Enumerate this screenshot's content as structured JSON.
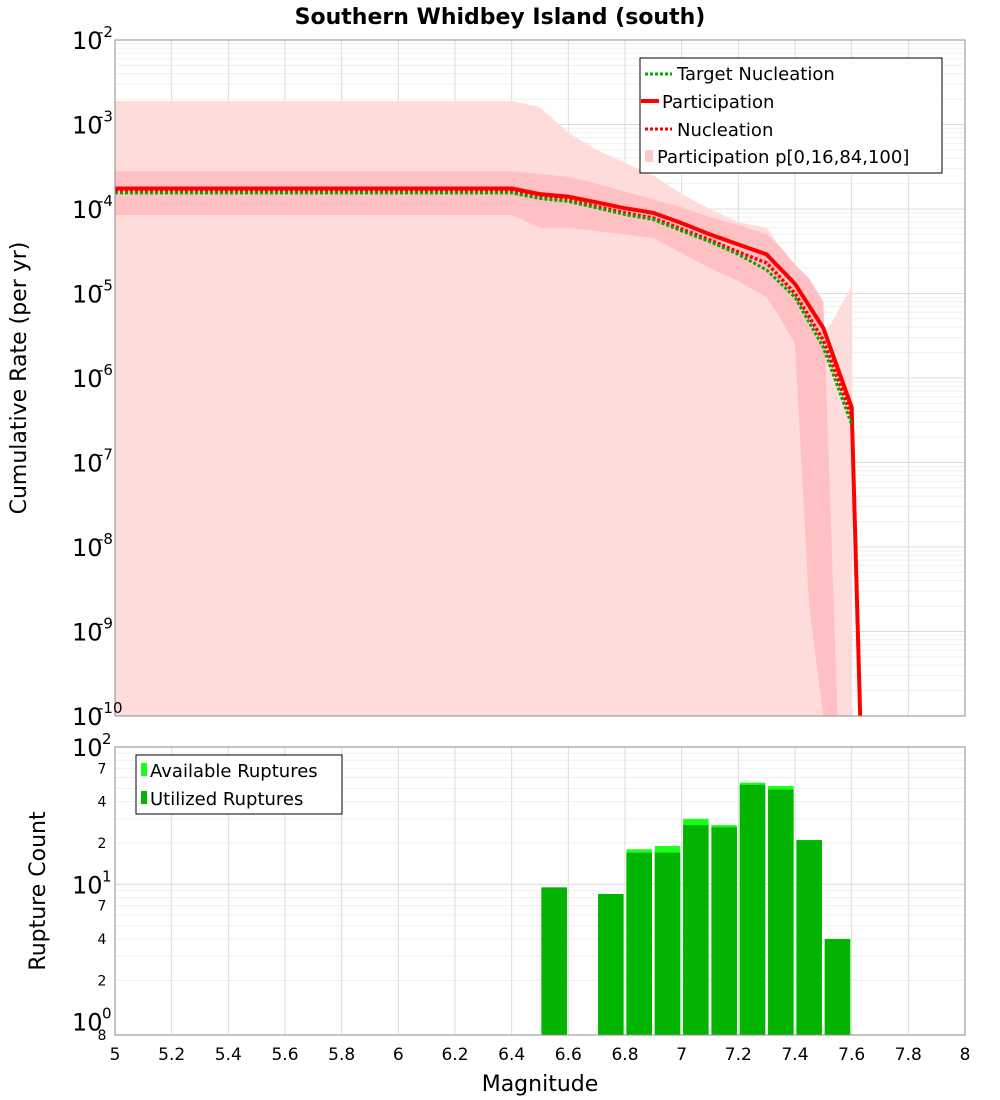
{
  "colors": {
    "participation": "#ff0000",
    "nucleation": "#ff0000",
    "target": "#00aa00",
    "band_outer": "#ffdcdc",
    "band_inner": "#ffc0c4",
    "available": "#19ff19",
    "utilized": "#00b400"
  },
  "chart_data": [
    {
      "type": "line",
      "title": "Southern Whidbey Island (south)",
      "ylabel": "Cumulative Rate (per yr)",
      "xlabel": "",
      "y_scale": "log",
      "xlim": [
        5,
        8
      ],
      "ylim": [
        1e-10,
        0.01
      ],
      "y_tick_labels": [
        {
          "exp": -2,
          "base": "10",
          "sup": "-2"
        },
        {
          "exp": -3,
          "base": "10",
          "sup": "-3"
        },
        {
          "exp": -4,
          "base": "10",
          "sup": "-4"
        },
        {
          "exp": -5,
          "base": "10",
          "sup": "-5"
        },
        {
          "exp": -6,
          "base": "10",
          "sup": "-6"
        },
        {
          "exp": -7,
          "base": "10",
          "sup": "-7"
        },
        {
          "exp": -8,
          "base": "10",
          "sup": "-8"
        },
        {
          "exp": -9,
          "base": "10",
          "sup": "-9"
        },
        {
          "exp": -10,
          "base": "10",
          "sup": "-10"
        }
      ],
      "legend": {
        "position": "top-right",
        "entries": [
          "Target Nucleation",
          "Participation",
          "Nucleation",
          "Participation p[0,16,84,100]"
        ]
      },
      "bands": {
        "x": [
          5.0,
          6.4,
          6.5,
          6.6,
          6.7,
          6.8,
          6.9,
          7.0,
          7.1,
          7.2,
          7.3,
          7.4,
          7.5,
          7.6
        ],
        "p0": [
          1e-10,
          1e-10,
          1e-10,
          1e-10,
          1e-10,
          1e-10,
          1e-10,
          1e-10,
          1e-10,
          1e-10,
          1e-10,
          1e-10,
          1e-10,
          1e-10
        ],
        "p100": [
          0.0019,
          0.0019,
          0.0016,
          0.0008,
          0.0005,
          0.00035,
          0.00025,
          0.00015,
          0.0001,
          7e-05,
          6e-05,
          2e-05,
          3e-06,
          1.2e-05
        ],
        "p16_x": [
          5.0,
          6.4,
          6.5,
          6.6,
          6.7,
          6.8,
          6.9,
          7.0,
          7.1,
          7.2,
          7.3,
          7.35,
          7.4,
          7.45,
          7.5,
          7.55
        ],
        "p16": [
          8.5e-05,
          8.5e-05,
          6e-05,
          6e-05,
          5.5e-05,
          5e-05,
          4.5e-05,
          3e-05,
          2e-05,
          1.4e-05,
          9e-06,
          5e-06,
          2.5e-06,
          2e-09,
          1e-10,
          1e-10
        ],
        "p84_x": [
          5.0,
          6.4,
          6.5,
          6.6,
          6.7,
          6.8,
          6.9,
          7.0,
          7.1,
          7.2,
          7.3,
          7.35,
          7.4,
          7.45,
          7.5,
          7.55
        ],
        "p84": [
          0.00028,
          0.00028,
          0.00026,
          0.00024,
          0.0002,
          0.00016,
          0.00013,
          0.000105,
          8e-05,
          6.5e-05,
          5e-05,
          3.5e-05,
          2.2e-05,
          1.5e-05,
          8e-06,
          1e-10
        ]
      },
      "series": [
        {
          "name": "Participation",
          "style": "solid",
          "x": [
            5.0,
            6.4,
            6.5,
            6.6,
            6.7,
            6.8,
            6.9,
            7.0,
            7.1,
            7.2,
            7.3,
            7.4,
            7.5,
            7.6,
            7.63
          ],
          "values": [
            0.000175,
            0.000175,
            0.00015,
            0.00014,
            0.00012,
            0.000102,
            9e-05,
            6.8e-05,
            5e-05,
            3.8e-05,
            2.9e-05,
            1.3e-05,
            3.9e-06,
            4.5e-07,
            1e-10
          ]
        },
        {
          "name": "Nucleation",
          "style": "dotted",
          "x": [
            5.0,
            6.4,
            6.5,
            6.6,
            6.7,
            6.8,
            6.9,
            7.0,
            7.1,
            7.2,
            7.3,
            7.4,
            7.5,
            7.6
          ],
          "values": [
            0.00016,
            0.00016,
            0.000138,
            0.000128,
            0.000107,
            9e-05,
            7.8e-05,
            5.8e-05,
            4.3e-05,
            3.1e-05,
            2.3e-05,
            1e-05,
            2.8e-06,
            3.5e-07
          ]
        },
        {
          "name": "Target Nucleation",
          "style": "dotted",
          "x": [
            5.0,
            6.4,
            6.5,
            6.6,
            6.7,
            6.8,
            6.9,
            7.0,
            7.1,
            7.2,
            7.3,
            7.4,
            7.5,
            7.6
          ],
          "values": [
            0.000155,
            0.000155,
            0.000133,
            0.000123,
            0.000103,
            8.6e-05,
            7.5e-05,
            5.5e-05,
            4.1e-05,
            2.9e-05,
            1.9e-05,
            9e-06,
            2.3e-06,
            2.8e-07
          ]
        }
      ]
    },
    {
      "type": "bar",
      "ylabel": "Rupture Count",
      "xlabel": "Magnitude",
      "y_scale": "log",
      "xlim": [
        5,
        8
      ],
      "ylim": [
        0.8,
        100
      ],
      "x_tick_labels": [
        "5",
        "5.2",
        "5.4",
        "5.6",
        "5.8",
        "6",
        "6.2",
        "6.4",
        "6.6",
        "6.8",
        "7",
        "7.2",
        "7.4",
        "7.6",
        "7.8",
        "8"
      ],
      "y_tick_labels": [
        {
          "value": 100,
          "base": "10",
          "sup": "2"
        },
        {
          "value": 10,
          "base": "10",
          "sup": "1"
        },
        {
          "value": 1,
          "base": "10",
          "sup": "0"
        }
      ],
      "y_minor_labels": [
        "7",
        "4",
        "2",
        "7",
        "4",
        "2",
        "8"
      ],
      "legend": {
        "position": "top-left",
        "entries": [
          "Available Ruptures",
          "Utilized Ruptures"
        ]
      },
      "bar_width": 0.09,
      "x": [
        6.55,
        6.75,
        6.85,
        6.95,
        7.05,
        7.15,
        7.25,
        7.35,
        7.45,
        7.55
      ],
      "series": [
        {
          "name": "Available Ruptures",
          "values": [
            9.5,
            8.5,
            18,
            19,
            30,
            27,
            55,
            52,
            21,
            4
          ]
        },
        {
          "name": "Utilized Ruptures",
          "values": [
            9.5,
            8.5,
            17,
            17,
            27,
            26,
            53,
            49,
            21,
            4
          ]
        }
      ]
    }
  ]
}
